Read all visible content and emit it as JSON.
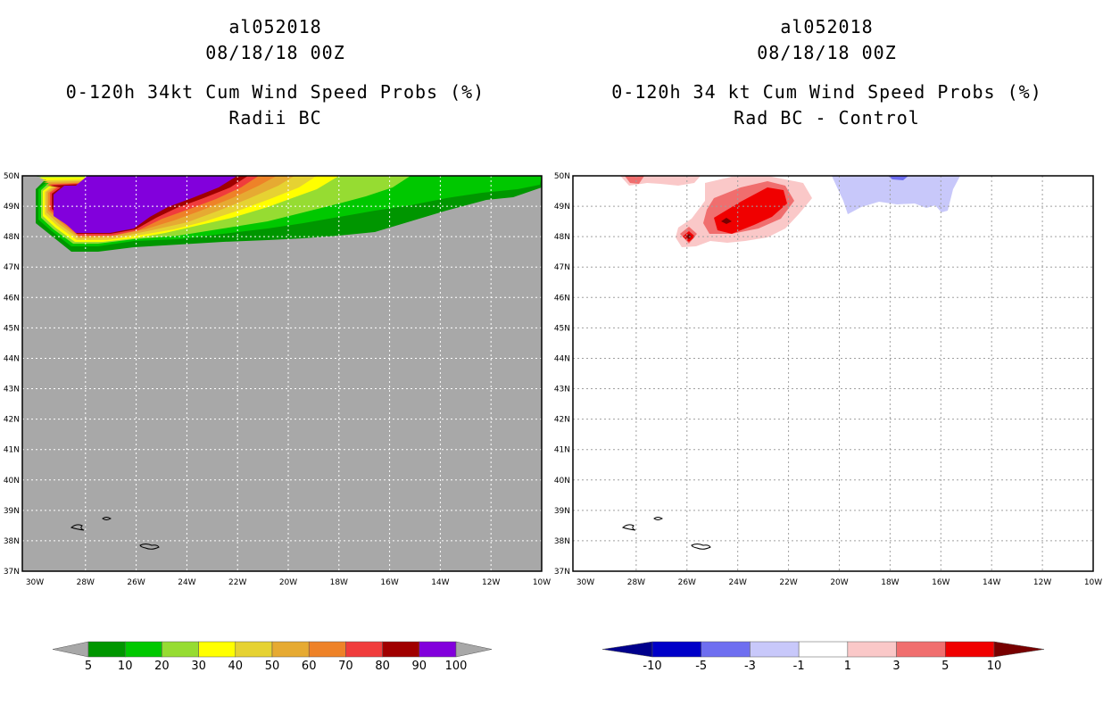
{
  "panels": [
    {
      "storm": "al052018",
      "datetime": "08/18/18 00Z",
      "title": "0-120h 34kt Cum Wind Speed Probs (%)",
      "subtitle": "Radii BC"
    },
    {
      "storm": "al052018",
      "datetime": "08/18/18 00Z",
      "title": "0-120h 34 kt Cum Wind Speed Probs (%)",
      "subtitle": "Rad BC - Control"
    }
  ],
  "chart_data": [
    {
      "type": "heatmap",
      "title": "0-120h 34kt Cum Wind Speed Probs (%) Radii BC",
      "lon_range": [
        -30,
        -10
      ],
      "lat_range": [
        37,
        50
      ],
      "x_tick_labels": [
        "30W",
        "28W",
        "26W",
        "24W",
        "22W",
        "20W",
        "18W",
        "16W",
        "14W",
        "12W",
        "10W"
      ],
      "y_tick_labels": [
        "37N",
        "38N",
        "39N",
        "40N",
        "41N",
        "42N",
        "43N",
        "44N",
        "45N",
        "46N",
        "47N",
        "48N",
        "49N",
        "50N"
      ],
      "grid": true,
      "background_color": "#a8a8a8",
      "colorbar": {
        "levels": [
          "5",
          "10",
          "20",
          "30",
          "40",
          "50",
          "60",
          "70",
          "80",
          "90",
          "100"
        ],
        "colors": [
          "#009600",
          "#00c800",
          "#96dc32",
          "#ffff00",
          "#e6d232",
          "#e6aa32",
          "#ee8228",
          "#f03c3c",
          "#a00000",
          "#8200dc"
        ],
        "under_color": "#a8a8a8",
        "over_color": "#a8a8a8"
      },
      "max_region": "near 28W-24W, 48N-50N (>=100%)"
    },
    {
      "type": "heatmap",
      "title": "0-120h 34 kt Cum Wind Speed Probs (%) Rad BC - Control",
      "lon_range": [
        -30,
        -10
      ],
      "lat_range": [
        37,
        50
      ],
      "x_tick_labels": [
        "30W",
        "28W",
        "26W",
        "24W",
        "22W",
        "20W",
        "18W",
        "16W",
        "14W",
        "12W",
        "10W"
      ],
      "y_tick_labels": [
        "37N",
        "38N",
        "39N",
        "40N",
        "41N",
        "42N",
        "43N",
        "44N",
        "45N",
        "46N",
        "47N",
        "48N",
        "49N",
        "50N"
      ],
      "grid": true,
      "background_color": "#ffffff",
      "colorbar": {
        "levels": [
          "-10",
          "-5",
          "-3",
          "-1",
          "1",
          "3",
          "5",
          "10"
        ],
        "colors": [
          "#0000c8",
          "#6e6ef0",
          "#c8c8fa",
          "#ffffff",
          "#fac8c8",
          "#f06e6e",
          "#f00000"
        ],
        "under_color": "#00008c",
        "over_color": "#780000"
      },
      "max_region": "positive differences near 26W-22W, 48N-49.5N; negative near 20W-16W, 49N-50N"
    }
  ]
}
